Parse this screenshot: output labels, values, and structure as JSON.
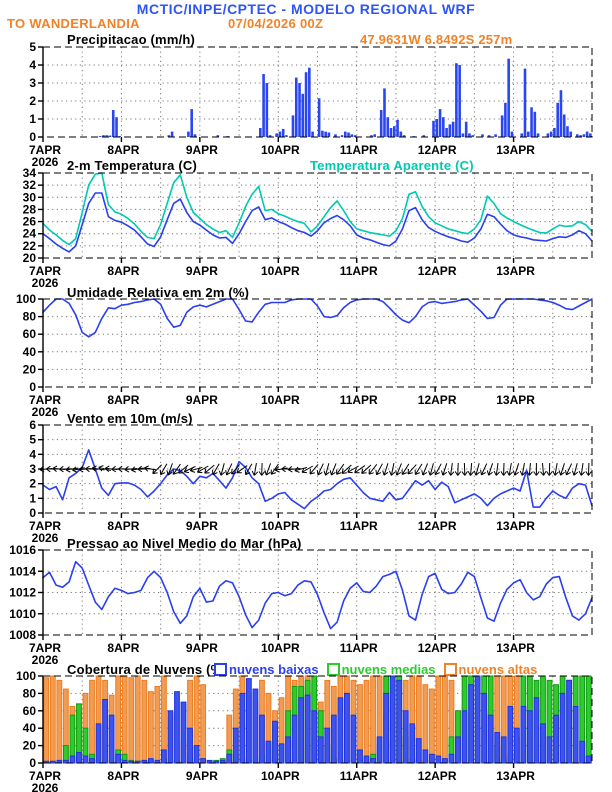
{
  "header": {
    "title": "MCTIC/INPE/CPTEC - MODELO REGIONAL WRF",
    "station": "TO WANDERLANDIA",
    "run": "07/04/2026 00Z"
  },
  "x_axis": {
    "labels": [
      "7APR",
      "8APR",
      "9APR",
      "10APR",
      "11APR",
      "12APR",
      "13APR"
    ],
    "year": "2026",
    "domain_days": [
      7,
      14
    ],
    "grid_interval_hours": 12
  },
  "colors": {
    "header_blue": "#2f55f5",
    "orange": "#f08227",
    "line_blue": "#2a3ff0",
    "cyan": "#00c9b1",
    "bar_blue": "#2a46f0",
    "cloud_low_fill": "#3d52ee",
    "cloud_mid_fill": "#2dcb2d",
    "cloud_high_fill": "#f29b52"
  },
  "chart_data": [
    {
      "type": "bar",
      "title": "Precipitacao (mm/h)",
      "right_label": "47.9631W 6.8492S 257m",
      "ylabel": "mm/h",
      "ylim": [
        0,
        5
      ],
      "yticks": [
        0,
        1,
        2,
        3,
        4,
        5
      ],
      "step_hours": 1,
      "color": "#2a46f0",
      "values": {
        "17": 0.05,
        "18": 0.1,
        "19": 0.1,
        "20": 0.08,
        "21": 1.5,
        "22": 1.1,
        "23": 0.05,
        "38": 0.1,
        "39": 0.3,
        "44": 0.3,
        "45": 1.55,
        "46": 0.15,
        "53": 0.1,
        "56": 0.05,
        "66": 0.5,
        "67": 3.5,
        "68": 3.0,
        "69": 0.1,
        "71": 0.2,
        "72": 0.3,
        "73": 0.45,
        "74": 0.1,
        "76": 1.2,
        "77": 3.3,
        "78": 3.0,
        "79": 2.4,
        "80": 3.6,
        "81": 3.85,
        "82": 0.3,
        "84": 2.15,
        "85": 0.35,
        "86": 0.3,
        "87": 0.25,
        "89": 0.15,
        "91": 0.1,
        "92": 0.3,
        "93": 0.25,
        "94": 0.15,
        "95": 0.1,
        "100": 0.1,
        "101": 0.15,
        "103": 1.5,
        "104": 2.7,
        "105": 1.1,
        "106": 0.5,
        "107": 0.6,
        "108": 0.95,
        "109": 0.3,
        "110": 0.1,
        "113": 0.05,
        "116": 0.1,
        "119": 0.9,
        "120": 1.0,
        "121": 1.55,
        "122": 1.1,
        "123": 0.5,
        "124": 0.7,
        "125": 0.85,
        "126": 4.1,
        "127": 4.0,
        "128": 0.2,
        "129": 0.85,
        "130": 0.2,
        "131": 0.1,
        "134": 0.15,
        "136": 0.1,
        "138": 0.15,
        "140": 1.2,
        "141": 1.9,
        "142": 4.35,
        "143": 0.3,
        "146": 0.2,
        "147": 3.8,
        "148": 0.3,
        "149": 1.65,
        "150": 1.4,
        "151": 0.2,
        "154": 0.2,
        "155": 0.3,
        "156": 0.5,
        "157": 1.9,
        "158": 2.6,
        "159": 1.25,
        "160": 0.6,
        "161": 0.3,
        "163": 0.15,
        "164": 0.1,
        "165": 0.15,
        "166": 0.3,
        "167": 0.2
      }
    },
    {
      "type": "line",
      "title": "2-m Temperatura (C)",
      "right_label": "Temperatura Aparente (C)",
      "ylim": [
        20,
        34
      ],
      "yticks": [
        20,
        22,
        24,
        26,
        28,
        30,
        32,
        34
      ],
      "step_hours": 2,
      "series": [
        {
          "name": "2-m Temperatura (C)",
          "color": "#2a3ff0",
          "values": [
            24.0,
            23.2,
            22.3,
            21.6,
            21.0,
            22.0,
            25.5,
            29.0,
            30.7,
            30.7,
            26.8,
            26.2,
            25.9,
            25.3,
            24.6,
            23.5,
            22.3,
            21.9,
            23.5,
            26.3,
            29.0,
            29.7,
            27.5,
            26.0,
            25.4,
            24.6,
            23.8,
            23.3,
            23.4,
            22.4,
            24.0,
            26.0,
            27.8,
            28.4,
            26.3,
            26.6,
            26.0,
            25.6,
            25.0,
            24.5,
            24.2,
            23.6,
            24.5,
            25.8,
            26.5,
            27.0,
            26.3,
            25.3,
            23.8,
            23.3,
            23.0,
            22.6,
            22.2,
            22.0,
            22.8,
            24.8,
            27.8,
            28.3,
            26.3,
            25.0,
            24.4,
            23.9,
            23.5,
            23.2,
            22.8,
            22.6,
            23.3,
            24.8,
            27.2,
            26.8,
            25.6,
            24.5,
            23.8,
            23.5,
            23.3,
            23.0,
            22.9,
            22.8,
            23.2,
            23.5,
            23.4,
            23.8,
            24.5,
            24.0,
            22.8
          ]
        },
        {
          "name": "Temperatura Aparente (C)",
          "color": "#00c9b1",
          "values": [
            25.7,
            24.6,
            23.8,
            22.9,
            22.2,
            23.2,
            27.5,
            32.0,
            33.8,
            34.0,
            28.8,
            27.6,
            27.2,
            26.5,
            25.6,
            24.4,
            23.4,
            23.2,
            25.5,
            29.0,
            32.4,
            33.7,
            30.0,
            27.5,
            26.5,
            25.5,
            24.8,
            24.2,
            24.5,
            23.4,
            25.8,
            28.5,
            30.5,
            31.8,
            27.8,
            28.0,
            27.3,
            26.9,
            26.4,
            26.0,
            25.7,
            24.3,
            25.3,
            26.8,
            28.3,
            29.4,
            27.8,
            26.0,
            24.8,
            24.5,
            24.2,
            24.0,
            23.8,
            23.6,
            24.5,
            26.5,
            30.5,
            30.9,
            28.5,
            26.8,
            25.8,
            25.3,
            24.8,
            24.5,
            24.2,
            24.0,
            24.8,
            26.3,
            30.2,
            29.0,
            27.3,
            26.6,
            26.0,
            25.5,
            25.0,
            24.6,
            24.2,
            24.1,
            24.8,
            25.4,
            25.2,
            25.3,
            26.0,
            25.5,
            24.4
          ]
        }
      ]
    },
    {
      "type": "line",
      "title": "Umidade Relativa em 2m (%)",
      "ylim": [
        0,
        100
      ],
      "yticks": [
        0,
        20,
        40,
        60,
        80,
        100
      ],
      "step_hours": 2,
      "series": [
        {
          "name": "Umidade Relativa em 2m (%)",
          "color": "#2a3ff0",
          "values": [
            85,
            93,
            100,
            100,
            95,
            82,
            62,
            57,
            62,
            78,
            90,
            89,
            93,
            94,
            96,
            97,
            99,
            100,
            94,
            78,
            68,
            70,
            85,
            91,
            93,
            91,
            94,
            97,
            100,
            100,
            88,
            75,
            74,
            85,
            94,
            96,
            96,
            96,
            99,
            100,
            100,
            100,
            92,
            80,
            79,
            81,
            90,
            96,
            99,
            100,
            100,
            100,
            97,
            90,
            82,
            76,
            73,
            80,
            91,
            96,
            97,
            95,
            96,
            97,
            99,
            100,
            93,
            86,
            78,
            79,
            93,
            100,
            100,
            100,
            100,
            100,
            99,
            98,
            96,
            93,
            89,
            88,
            92,
            96,
            100
          ]
        }
      ]
    },
    {
      "type": "wind",
      "title": "Vento em 10m (m/s)",
      "ylim": [
        0,
        6
      ],
      "yticks": [
        0,
        1,
        2,
        3,
        4,
        5,
        6
      ],
      "step_hours": 2,
      "barb_anchor_value": 3,
      "series": [
        {
          "name": "Vento em 10m (m/s)",
          "color": "#2a3ff0",
          "values": [
            1.9,
            1.6,
            1.8,
            0.9,
            2.4,
            2.7,
            3.1,
            4.3,
            3.0,
            1.7,
            1.2,
            2.0,
            2.05,
            2.05,
            1.9,
            1.6,
            1.1,
            1.5,
            2.0,
            2.6,
            3.0,
            2.9,
            2.5,
            2.0,
            2.5,
            2.4,
            2.7,
            2.2,
            1.7,
            2.4,
            3.5,
            3.1,
            2.4,
            2.0,
            0.8,
            1.0,
            1.3,
            1.4,
            0.9,
            0.6,
            0.3,
            0.8,
            1.1,
            1.5,
            1.6,
            2.0,
            2.3,
            2.4,
            1.9,
            1.4,
            1.0,
            0.9,
            0.8,
            1.4,
            0.9,
            1.0,
            1.6,
            2.2,
            1.9,
            2.2,
            1.6,
            2.1,
            1.8,
            0.7,
            0.9,
            1.1,
            1.3,
            1.0,
            0.5,
            1.0,
            1.3,
            1.5,
            1.7,
            1.5,
            2.9,
            0.4,
            0.4,
            1.0,
            1.5,
            1.2,
            1.0,
            1.7,
            2.0,
            1.9,
            0.5
          ]
        }
      ],
      "barb_angles": [
        175,
        180,
        185,
        178,
        172,
        168,
        175,
        182,
        188,
        195,
        185,
        178,
        180,
        175,
        170,
        178,
        190,
        135,
        120,
        110,
        125,
        140,
        155,
        165,
        150,
        140,
        120,
        105,
        115,
        130,
        145,
        120,
        100,
        92,
        110,
        125,
        170,
        180,
        175,
        165,
        150,
        130,
        115,
        105,
        112,
        125,
        138,
        150,
        145,
        138,
        128,
        118,
        108,
        102,
        112,
        122,
        132,
        122,
        112,
        105,
        118,
        108,
        98,
        92,
        88,
        95,
        105,
        115,
        108,
        98,
        92,
        100,
        108,
        100,
        95,
        90,
        85,
        92,
        100,
        108,
        115,
        105,
        98,
        92
      ]
    },
    {
      "type": "line",
      "title": "Pressao ao Nivel Medio do Mar (hPa)",
      "ylim": [
        1008,
        1016
      ],
      "yticks": [
        1008,
        1010,
        1012,
        1014,
        1016
      ],
      "step_hours": 2,
      "series": [
        {
          "name": "Pressao ao Nivel Medio do Mar (hPa)",
          "color": "#2a3ff0",
          "values": [
            1013.4,
            1013.9,
            1012.7,
            1012.5,
            1013.0,
            1014.9,
            1014.3,
            1012.7,
            1011.1,
            1010.4,
            1011.6,
            1012.4,
            1012.2,
            1011.9,
            1012.0,
            1012.2,
            1013.4,
            1014.0,
            1013.4,
            1012.0,
            1010.2,
            1009.1,
            1009.8,
            1011.6,
            1012.4,
            1011.1,
            1011.2,
            1012.6,
            1013.1,
            1012.9,
            1011.6,
            1009.9,
            1008.7,
            1009.4,
            1011.0,
            1011.9,
            1012.0,
            1011.7,
            1011.9,
            1012.7,
            1013.1,
            1013.0,
            1011.8,
            1010.1,
            1008.6,
            1009.2,
            1011.2,
            1012.4,
            1012.9,
            1012.1,
            1012.0,
            1012.6,
            1013.5,
            1013.7,
            1014.0,
            1012.2,
            1009.8,
            1009.4,
            1011.8,
            1013.5,
            1013.8,
            1012.3,
            1011.9,
            1012.0,
            1012.8,
            1013.9,
            1013.5,
            1011.5,
            1009.6,
            1009.3,
            1011.0,
            1012.3,
            1012.9,
            1013.2,
            1012.0,
            1011.3,
            1011.6,
            1012.8,
            1013.4,
            1013.5,
            1011.5,
            1009.8,
            1009.4,
            1010.0,
            1011.5
          ]
        }
      ]
    },
    {
      "type": "bars3",
      "title": "Cobertura de Nuvens (%)",
      "ylim": [
        0,
        100
      ],
      "yticks": [
        0,
        20,
        40,
        60,
        80,
        100
      ],
      "step_hours": 2,
      "legend": [
        {
          "label": "nuvens baixas",
          "color": "#2a3ff0"
        },
        {
          "label": "nuvens medias",
          "color": "#2dcb2d"
        },
        {
          "label": "nuvens altas",
          "color": "#f08227"
        }
      ],
      "series": [
        {
          "name": "nuvens altas",
          "fill": "#f29b52",
          "stroke": "#ea7d1f",
          "values": [
            98,
            100,
            95,
            85,
            65,
            60,
            80,
            95,
            100,
            95,
            78,
            100,
            100,
            98,
            100,
            95,
            82,
            88,
            100,
            55,
            0,
            25,
            95,
            100,
            90,
            0,
            0,
            0,
            55,
            85,
            100,
            80,
            70,
            95,
            80,
            60,
            75,
            100,
            95,
            100,
            100,
            90,
            70,
            95,
            88,
            100,
            100,
            95,
            90,
            95,
            100,
            100,
            55,
            25,
            60,
            95,
            100,
            100,
            90,
            85,
            100,
            100,
            95,
            60,
            0,
            0,
            0,
            0,
            60,
            100,
            100,
            100,
            100,
            25,
            0,
            0,
            0,
            0,
            0,
            0,
            0,
            0,
            0,
            0
          ]
        },
        {
          "name": "nuvens medias",
          "fill": "#2dcb2d",
          "stroke": "#149914",
          "values": [
            0,
            0,
            0,
            20,
            55,
            68,
            40,
            10,
            3,
            2,
            3,
            15,
            10,
            3,
            2,
            2,
            3,
            2,
            5,
            3,
            2,
            2,
            10,
            5,
            0,
            2,
            3,
            5,
            15,
            10,
            5,
            3,
            5,
            10,
            20,
            45,
            20,
            60,
            88,
            88,
            95,
            100,
            60,
            20,
            5,
            3,
            2,
            5,
            3,
            5,
            10,
            20,
            100,
            100,
            100,
            30,
            5,
            3,
            2,
            2,
            2,
            3,
            30,
            60,
            100,
            100,
            100,
            100,
            100,
            20,
            5,
            10,
            30,
            100,
            100,
            95,
            100,
            95,
            90,
            100,
            95,
            100,
            100,
            100
          ]
        },
        {
          "name": "nuvens baixas",
          "fill": "#3d52ee",
          "stroke": "#1f34d8",
          "values": [
            2,
            2,
            3,
            3,
            8,
            12,
            8,
            5,
            45,
            73,
            55,
            10,
            3,
            2,
            2,
            3,
            5,
            3,
            15,
            60,
            82,
            70,
            40,
            20,
            5,
            3,
            2,
            3,
            10,
            40,
            80,
            97,
            85,
            55,
            25,
            48,
            22,
            30,
            55,
            75,
            78,
            60,
            30,
            40,
            55,
            75,
            80,
            55,
            15,
            8,
            5,
            30,
            80,
            100,
            95,
            60,
            45,
            28,
            15,
            10,
            8,
            5,
            10,
            30,
            60,
            90,
            100,
            80,
            55,
            35,
            30,
            65,
            40,
            65,
            60,
            75,
            45,
            30,
            55,
            80,
            95,
            65,
            25,
            8
          ]
        }
      ]
    }
  ]
}
